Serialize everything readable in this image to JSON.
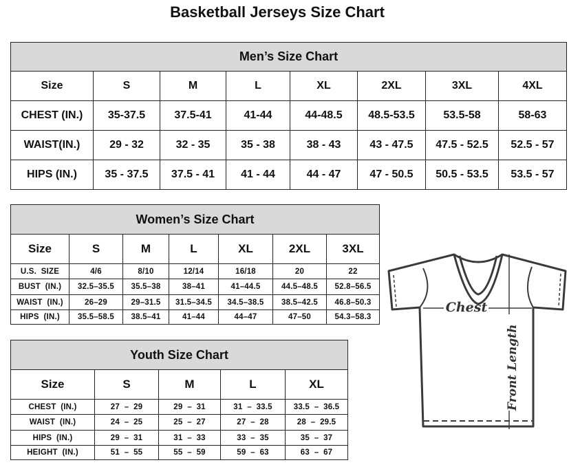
{
  "title": "Basketball Jerseys Size Chart",
  "colors": {
    "header_bg": "#d9d9d9",
    "border": "#222222",
    "shirt_stroke": "#3a3a3a"
  },
  "men": {
    "heading": "Men’s Size Chart",
    "header": [
      "Size",
      "S",
      "M",
      "L",
      "XL",
      "2XL",
      "3XL",
      "4XL"
    ],
    "rows": [
      [
        "CHEST (IN.)",
        "35-37.5",
        "37.5-41",
        "41-44",
        "44-48.5",
        "48.5-53.5",
        "53.5-58",
        "58-63"
      ],
      [
        "WAIST(IN.)",
        "29 - 32",
        "32 - 35",
        "35 - 38",
        "38 - 43",
        "43 - 47.5",
        "47.5 - 52.5",
        "52.5 - 57"
      ],
      [
        "HIPS (IN.)",
        "35 - 37.5",
        "37.5 - 41",
        "41 - 44",
        "44 - 47",
        "47 - 50.5",
        "50.5 - 53.5",
        "53.5 - 57"
      ]
    ]
  },
  "women": {
    "heading": "Women’s Size Chart",
    "header": [
      "Size",
      "S",
      "M",
      "L",
      "XL",
      "2XL",
      "3XL"
    ],
    "rows": [
      [
        "U.S.  SIZE",
        "4/6",
        "8/10",
        "12/14",
        "16/18",
        "20",
        "22"
      ],
      [
        "BUST  (IN.)",
        "32.5–35.5",
        "35.5–38",
        "38–41",
        "41–44.5",
        "44.5–48.5",
        "52.8–56.5"
      ],
      [
        "WAIST  (IN.)",
        "26–29",
        "29–31.5",
        "31.5–34.5",
        "34.5–38.5",
        "38.5–42.5",
        "46.8–50.3"
      ],
      [
        "HIPS  (IN.)",
        "35.5–58.5",
        "38.5–41",
        "41–44",
        "44–47",
        "47–50",
        "54.3–58.3"
      ]
    ]
  },
  "youth": {
    "heading": "Youth Size Chart",
    "header": [
      "Size",
      "S",
      "M",
      "L",
      "XL"
    ],
    "rows": [
      [
        "CHEST  (IN.)",
        "27  –  29",
        "29  –  31",
        "31  –  33.5",
        "33.5  –  36.5"
      ],
      [
        "WAIST  (IN.)",
        "24  –  25",
        "25  –  27",
        "27  –  28",
        "28  –  29.5"
      ],
      [
        "HIPS  (IN.)",
        "29  –  31",
        "31  –  33",
        "33  –  35",
        "35  –  37"
      ],
      [
        "HEIGHT  (IN.)",
        "51  –  55",
        "55  –  59",
        "59  –  63",
        "63  –  67"
      ]
    ]
  },
  "diagram": {
    "chest_label": "Chest",
    "length_label": "Front Length"
  }
}
